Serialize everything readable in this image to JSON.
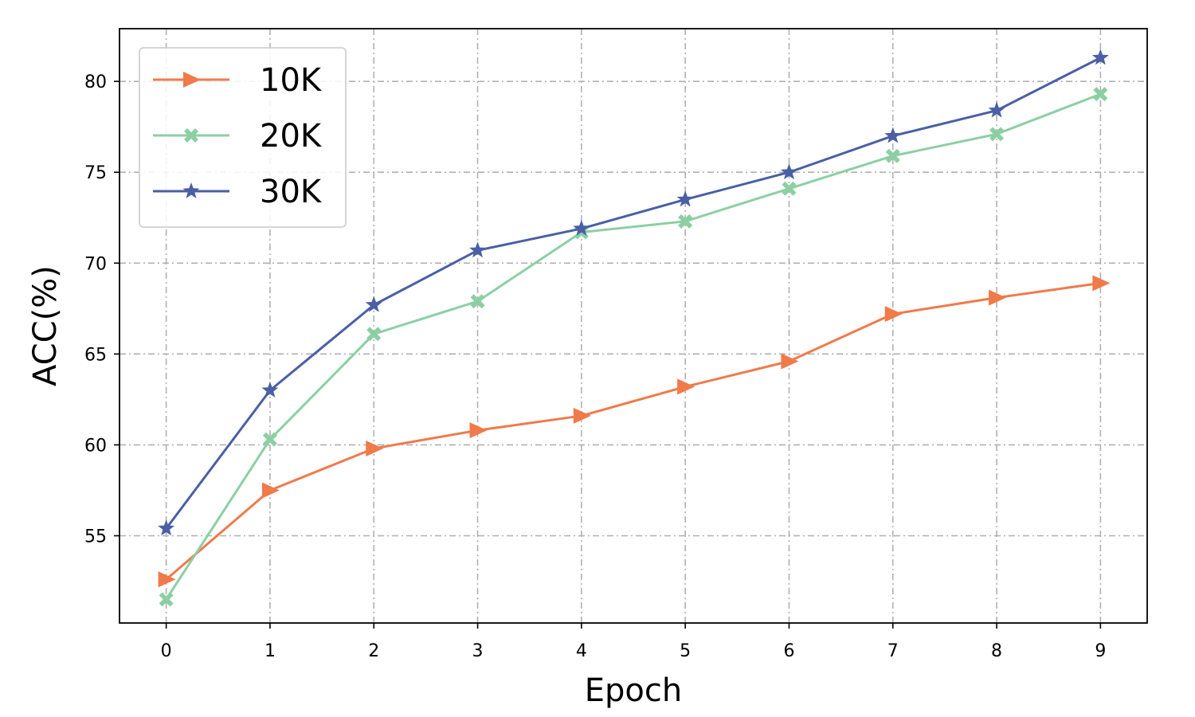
{
  "chart_data": {
    "type": "line",
    "xlabel": "Epoch",
    "ylabel": "ACC(%)",
    "x": [
      0,
      1,
      2,
      3,
      4,
      5,
      6,
      7,
      8,
      9
    ],
    "xlim": [
      -0.45,
      9.45
    ],
    "ylim": [
      50.2,
      82.9
    ],
    "yticks": [
      55,
      60,
      65,
      70,
      75,
      80
    ],
    "grid": true,
    "legend_position": "top-left",
    "series": [
      {
        "name": "10K",
        "color": "#f07a4a",
        "marker": "triangle-right",
        "values": [
          52.6,
          57.5,
          59.8,
          60.8,
          61.6,
          63.2,
          64.6,
          67.2,
          68.1,
          68.9
        ]
      },
      {
        "name": "20K",
        "color": "#8ccfa3",
        "marker": "x-filled",
        "values": [
          51.5,
          60.3,
          66.1,
          67.9,
          71.7,
          72.3,
          74.1,
          75.9,
          77.1,
          79.3
        ]
      },
      {
        "name": "30K",
        "color": "#4a5fa5",
        "marker": "star",
        "values": [
          55.4,
          63.0,
          67.7,
          70.7,
          71.9,
          73.5,
          75.0,
          77.0,
          78.4,
          81.3
        ]
      }
    ]
  }
}
